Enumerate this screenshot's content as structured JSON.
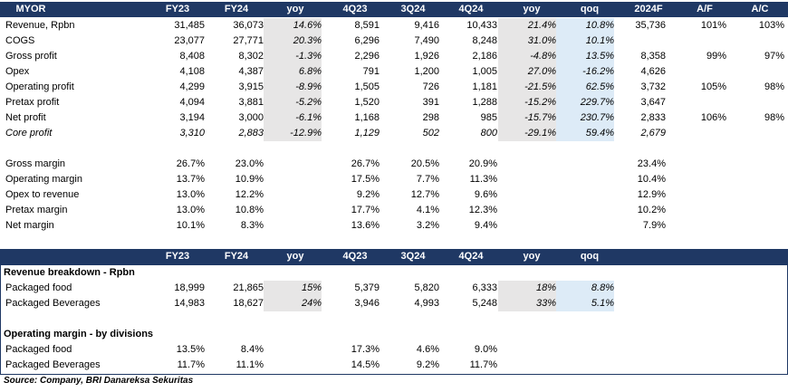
{
  "table1": {
    "headers": [
      "MYOR",
      "FY23",
      "FY24",
      "yoy",
      "4Q23",
      "3Q24",
      "4Q24",
      "yoy",
      "qoq",
      "2024F",
      "A/F",
      "A/C"
    ],
    "rows": [
      {
        "label": "Revenue, Rpbn",
        "fy23": "31,485",
        "fy24": "36,073",
        "yoy1": "14.6%",
        "q423": "8,591",
        "q324": "9,416",
        "q424": "10,433",
        "yoy2": "21.4%",
        "qoq": "10.8%",
        "f2024": "35,736",
        "af": "101%",
        "ac": "103%"
      },
      {
        "label": "COGS",
        "fy23": "23,077",
        "fy24": "27,771",
        "yoy1": "20.3%",
        "q423": "6,296",
        "q324": "7,490",
        "q424": "8,248",
        "yoy2": "31.0%",
        "qoq": "10.1%",
        "f2024": "",
        "af": "",
        "ac": ""
      },
      {
        "label": "Gross profit",
        "fy23": "8,408",
        "fy24": "8,302",
        "yoy1": "-1.3%",
        "q423": "2,296",
        "q324": "1,926",
        "q424": "2,186",
        "yoy2": "-4.8%",
        "qoq": "13.5%",
        "f2024": "8,358",
        "af": "99%",
        "ac": "97%"
      },
      {
        "label": "Opex",
        "fy23": "4,108",
        "fy24": "4,387",
        "yoy1": "6.8%",
        "q423": "791",
        "q324": "1,200",
        "q424": "1,005",
        "yoy2": "27.0%",
        "qoq": "-16.2%",
        "f2024": "4,626",
        "af": "",
        "ac": ""
      },
      {
        "label": "Operating profit",
        "fy23": "4,299",
        "fy24": "3,915",
        "yoy1": "-8.9%",
        "q423": "1,505",
        "q324": "726",
        "q424": "1,181",
        "yoy2": "-21.5%",
        "qoq": "62.5%",
        "f2024": "3,732",
        "af": "105%",
        "ac": "98%"
      },
      {
        "label": "Pretax profit",
        "fy23": "4,094",
        "fy24": "3,881",
        "yoy1": "-5.2%",
        "q423": "1,520",
        "q324": "391",
        "q424": "1,288",
        "yoy2": "-15.2%",
        "qoq": "229.7%",
        "f2024": "3,647",
        "af": "",
        "ac": ""
      },
      {
        "label": "Net profit",
        "fy23": "3,194",
        "fy24": "3,000",
        "yoy1": "-6.1%",
        "q423": "1,168",
        "q324": "298",
        "q424": "985",
        "yoy2": "-15.7%",
        "qoq": "230.7%",
        "f2024": "2,833",
        "af": "106%",
        "ac": "98%"
      },
      {
        "label": "Core profit",
        "fy23": "3,310",
        "fy24": "2,883",
        "yoy1": "-12.9%",
        "q423": "1,129",
        "q324": "502",
        "q424": "800",
        "yoy2": "-29.1%",
        "qoq": "59.4%",
        "f2024": "2,679",
        "af": "",
        "ac": ""
      }
    ],
    "margins": [
      {
        "label": "Gross margin",
        "fy23": "26.7%",
        "fy24": "23.0%",
        "q423": "26.7%",
        "q324": "20.5%",
        "q424": "20.9%",
        "f2024": "23.4%"
      },
      {
        "label": "Operating margin",
        "fy23": "13.7%",
        "fy24": "10.9%",
        "q423": "17.5%",
        "q324": "7.7%",
        "q424": "11.3%",
        "f2024": "10.4%"
      },
      {
        "label": "Opex to revenue",
        "fy23": "13.0%",
        "fy24": "12.2%",
        "q423": "9.2%",
        "q324": "12.7%",
        "q424": "9.6%",
        "f2024": "12.9%"
      },
      {
        "label": "Pretax margin",
        "fy23": "13.0%",
        "fy24": "10.8%",
        "q423": "17.7%",
        "q324": "4.1%",
        "q424": "12.3%",
        "f2024": "10.2%"
      },
      {
        "label": "Net margin",
        "fy23": "10.1%",
        "fy24": "8.3%",
        "q423": "13.6%",
        "q324": "3.2%",
        "q424": "9.4%",
        "f2024": "7.9%"
      }
    ]
  },
  "table2": {
    "headers": [
      "FY23",
      "FY24",
      "yoy",
      "4Q23",
      "3Q24",
      "4Q24",
      "yoy",
      "qoq"
    ],
    "section1_title": "Revenue breakdown - Rpbn",
    "section1_rows": [
      {
        "label": "Packaged food",
        "fy23": "18,999",
        "fy24": "21,865",
        "yoy1": "15%",
        "q423": "5,379",
        "q324": "5,820",
        "q424": "6,333",
        "yoy2": "18%",
        "qoq": "8.8%"
      },
      {
        "label": "Packaged Beverages",
        "fy23": "14,983",
        "fy24": "18,627",
        "yoy1": "24%",
        "q423": "3,946",
        "q324": "4,993",
        "q424": "5,248",
        "yoy2": "33%",
        "qoq": "5.1%"
      }
    ],
    "section2_title": "Operating margin - by divisions",
    "section2_rows": [
      {
        "label": "Packaged food",
        "fy23": "13.5%",
        "fy24": "8.4%",
        "q423": "17.3%",
        "q324": "4.6%",
        "q424": "9.0%"
      },
      {
        "label": "Packaged Beverages",
        "fy23": "11.7%",
        "fy24": "11.1%",
        "q423": "14.5%",
        "q324": "9.2%",
        "q424": "11.7%"
      }
    ]
  },
  "source": "Source: Company, BRI Danareksa Sekuritas",
  "colors": {
    "header_bg": "#1f3864",
    "grey_shade": "#e7e6e6",
    "blue_shade": "#ddebf7"
  }
}
